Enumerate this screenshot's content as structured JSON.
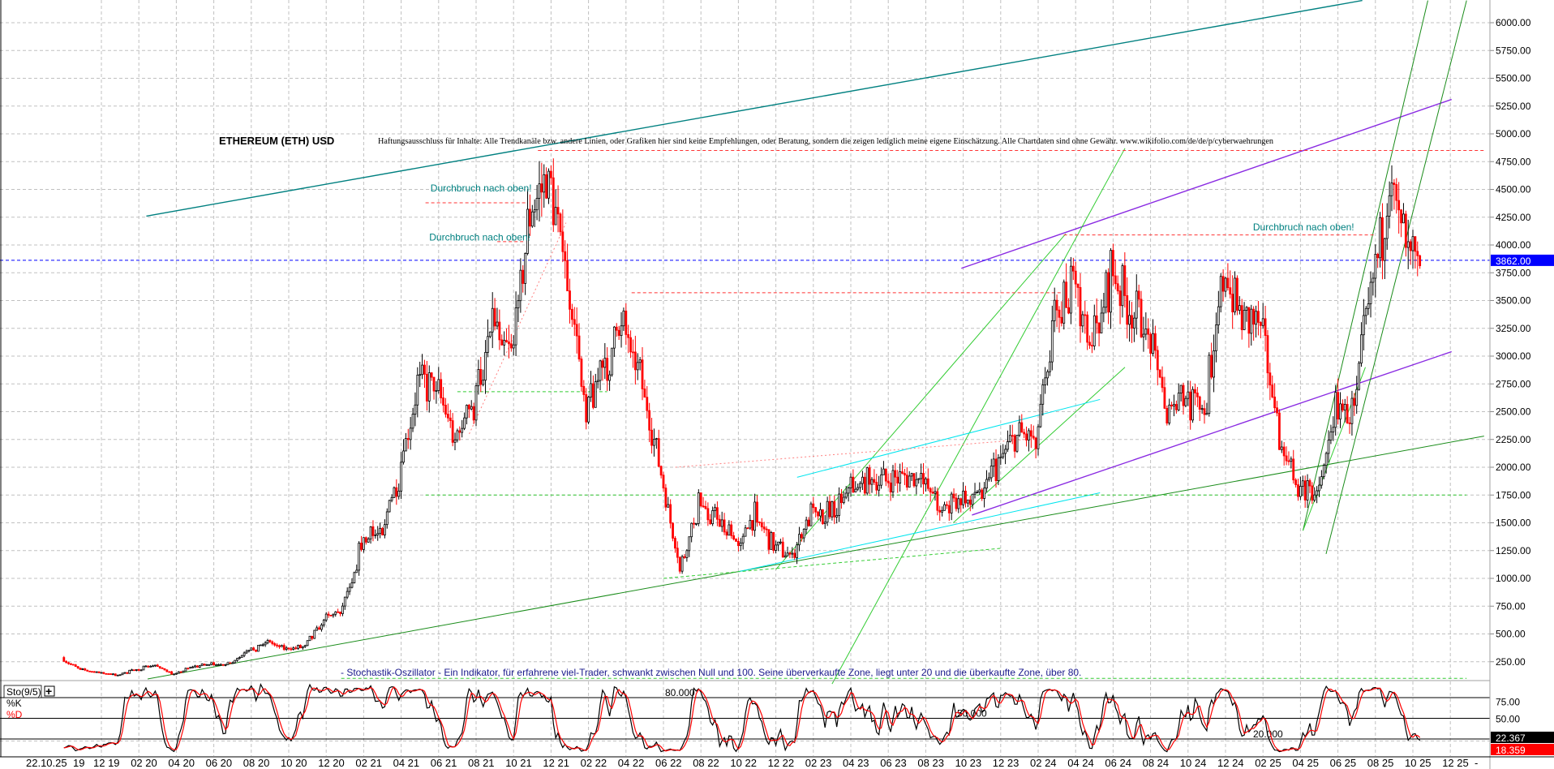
{
  "chart_data": [
    {
      "type": "candlestick",
      "title": "ETHEREUM (ETH) USD",
      "disclaimer": "Haftungsausschluss für Inhalte: Alle Trendkanäle bzw. andere Linien, oder Grafiken hier sind keine Empfehlungen, oder Beratung, sondern die zeigen lediglich meine eigene Einschätzung. Alle Chartdaten sind ohne Gewähr.  www.wikifolio.com/de/de/p/cyberwaehrungen",
      "ylim": [
        0,
        6000
      ],
      "y_ticks": [
        "6000.00",
        "5750.00",
        "5500.00",
        "5250.00",
        "5000.00",
        "4750.00",
        "4500.00",
        "4250.00",
        "4000.00",
        "3750.00",
        "3500.00",
        "3250.00",
        "3000.00",
        "2750.00",
        "2500.00",
        "2250.00",
        "2000.00",
        "1750.00",
        "1500.00",
        "1250.00",
        "1000.00",
        "750.00",
        "500.00",
        "250.00"
      ],
      "current_price": 3862.0,
      "current_price_label": "3862.00",
      "grid": true,
      "monthly_close": {
        "start": "2019-10",
        "values": [
          180,
          150,
          130,
          180,
          220,
          135,
          205,
          230,
          225,
          345,
          430,
          360,
          385,
          610,
          740,
          1310,
          1420,
          1920,
          2770,
          2710,
          2280,
          2540,
          3430,
          3000,
          4290,
          4630,
          3680,
          2600,
          2920,
          3280,
          2730,
          1940,
          1070,
          1680,
          1550,
          1330,
          1570,
          1290,
          1200,
          1590,
          1600,
          1820,
          1870,
          1870,
          1930,
          1860,
          1650,
          1670,
          1810,
          2050,
          2280,
          2280,
          3380,
          3650,
          3010,
          3760,
          3430,
          3230,
          2510,
          2600,
          2510,
          3700,
          3330,
          3300,
          2230,
          1820,
          1790,
          2530,
          2490,
          3700,
          4400,
          4140,
          3862
        ]
      },
      "trendlines": [
        {
          "color": "#008080",
          "style": "solid",
          "from": [
            "2020-02-13",
            4260
          ],
          "to": [
            "2025-07-10",
            6200
          ]
        },
        {
          "color": "#8a2be2",
          "style": "solid",
          "from": [
            "2023-09-28",
            3790
          ],
          "to": [
            "2025-12-03",
            5310
          ]
        },
        {
          "color": "#8a2be2",
          "style": "solid",
          "from": [
            "2023-10-15",
            1570
          ],
          "to": [
            "2025-12-03",
            3040
          ]
        },
        {
          "color": "#1a8c1a",
          "style": "solid",
          "from": [
            "2020-02-15",
            95
          ],
          "to": [
            "2026-01-25",
            2280
          ]
        },
        {
          "color": "#33cc33",
          "style": "solid",
          "from": [
            "2023-03-01",
            50
          ],
          "to": [
            "2024-06-20",
            4870
          ]
        },
        {
          "color": "#33cc33",
          "style": "solid",
          "from": [
            "2022-12-01",
            1080
          ],
          "to": [
            "2024-03-15",
            4100
          ]
        },
        {
          "color": "#33cc33",
          "style": "solid",
          "from": [
            "2023-09-15",
            1500
          ],
          "to": [
            "2024-06-20",
            2900
          ]
        },
        {
          "color": "#1a8c1a",
          "style": "solid",
          "from": [
            "2025-04-05",
            1430
          ],
          "to": [
            "2025-10-25",
            6200
          ]
        },
        {
          "color": "#1a8c1a",
          "style": "solid",
          "from": [
            "2025-05-12",
            1220
          ],
          "to": [
            "2025-12-27",
            6200
          ]
        },
        {
          "color": "#33cc33",
          "style": "solid",
          "from": [
            "2025-04-05",
            1430
          ],
          "to": [
            "2025-07-15",
            2900
          ]
        },
        {
          "color": "#00e5ee",
          "style": "solid",
          "from": [
            "2023-01-05",
            1910
          ],
          "to": [
            "2024-05-10",
            2610
          ]
        },
        {
          "color": "#00e5ee",
          "style": "solid",
          "from": [
            "2022-10-01",
            1060
          ],
          "to": [
            "2024-05-10",
            1770
          ]
        },
        {
          "color": "#ff3333",
          "style": "dashed",
          "from": [
            "2021-11-10",
            4850
          ],
          "to": [
            "2026-01-25",
            4850
          ]
        },
        {
          "color": "#ff3333",
          "style": "dashed",
          "from": [
            "2024-03-12",
            4090
          ],
          "to": [
            "2025-08-01",
            4090
          ]
        },
        {
          "color": "#ff3333",
          "style": "dashed",
          "from": [
            "2021-05-10",
            4380
          ],
          "to": [
            "2021-10-20",
            4380
          ]
        },
        {
          "color": "#ff3333",
          "style": "dashed",
          "from": [
            "2021-09-05",
            4030
          ],
          "to": [
            "2021-10-20",
            4030
          ]
        },
        {
          "color": "#ff3333",
          "style": "dashed",
          "from": [
            "2022-04-10",
            3570
          ],
          "to": [
            "2024-03-10",
            3570
          ]
        },
        {
          "color": "#ff8080",
          "style": "dotted",
          "from": [
            "2021-07-20",
            2300
          ],
          "to": [
            "2021-12-25",
            4200
          ]
        },
        {
          "color": "#ff8080",
          "style": "dotted",
          "from": [
            "2022-06-20",
            2000
          ],
          "to": [
            "2024-01-10",
            2250
          ]
        },
        {
          "color": "#33cc33",
          "style": "dashed",
          "from": [
            "2021-05-10",
            1750
          ],
          "to": [
            "2025-12-27",
            1750
          ]
        },
        {
          "color": "#33cc33",
          "style": "dashed",
          "from": [
            "2021-07-01",
            2680
          ],
          "to": [
            "2022-03-01",
            2680
          ]
        },
        {
          "color": "#33cc33",
          "style": "dashed",
          "from": [
            "2020-12-25",
            100
          ],
          "to": [
            "2025-12-27",
            100
          ]
        },
        {
          "color": "#33cc33",
          "style": "dashed",
          "from": [
            "2022-06-01",
            1000
          ],
          "to": [
            "2023-12-01",
            1270
          ]
        }
      ],
      "annotations": [
        {
          "text": "Durchbruch nach oben!",
          "at": [
            "2021-05-18",
            4480
          ]
        },
        {
          "text": "Durchbruch nach oben!",
          "at": [
            "2021-05-16",
            4040
          ]
        },
        {
          "text": "Durchbruch nach oben!",
          "at": [
            "2025-01-15",
            4130
          ]
        }
      ]
    },
    {
      "type": "line",
      "title": "Sto(9/5)",
      "series": [
        {
          "name": "%K",
          "color": "#000000"
        },
        {
          "name": "%D",
          "color": "#ff0000"
        }
      ],
      "ylim": [
        0,
        100
      ],
      "levels": [
        80,
        50,
        20
      ],
      "level_labels": [
        "80.000",
        "50.000",
        "20.000"
      ],
      "y_ticks": [
        "75.00",
        "50.00"
      ],
      "last_k": "22.367",
      "last_d": "18.359"
    }
  ],
  "x_ticks": [
    "22.10.25",
    "19",
    "12 19",
    "02 20",
    "04 20",
    "06 20",
    "08 20",
    "10 20",
    "12 20",
    "02 21",
    "04 21",
    "06 21",
    "08 21",
    "10 21",
    "12 21",
    "02 22",
    "04 22",
    "06 22",
    "08 22",
    "10 22",
    "12 22",
    "02 23",
    "04 23",
    "06 23",
    "08 23",
    "10 23",
    "12 23",
    "02 24",
    "04 24",
    "06 24",
    "08 24",
    "10 24",
    "12 24",
    "02 25",
    "04 25",
    "06 25",
    "08 25",
    "10 25",
    "12 25",
    "-"
  ],
  "indicator_description": "- Stochastik-Oszillator - Ein Indikator, für erfahrene viel-Trader, schwankt zwischen Null und 100. Seine überverkaufte Zone, liegt unter 20 und die überkaufte Zone, über 80.",
  "colors": {
    "up": "#000000",
    "down": "#ff0000",
    "price_line": "#0000ff",
    "grid": "#c0c0c0"
  }
}
